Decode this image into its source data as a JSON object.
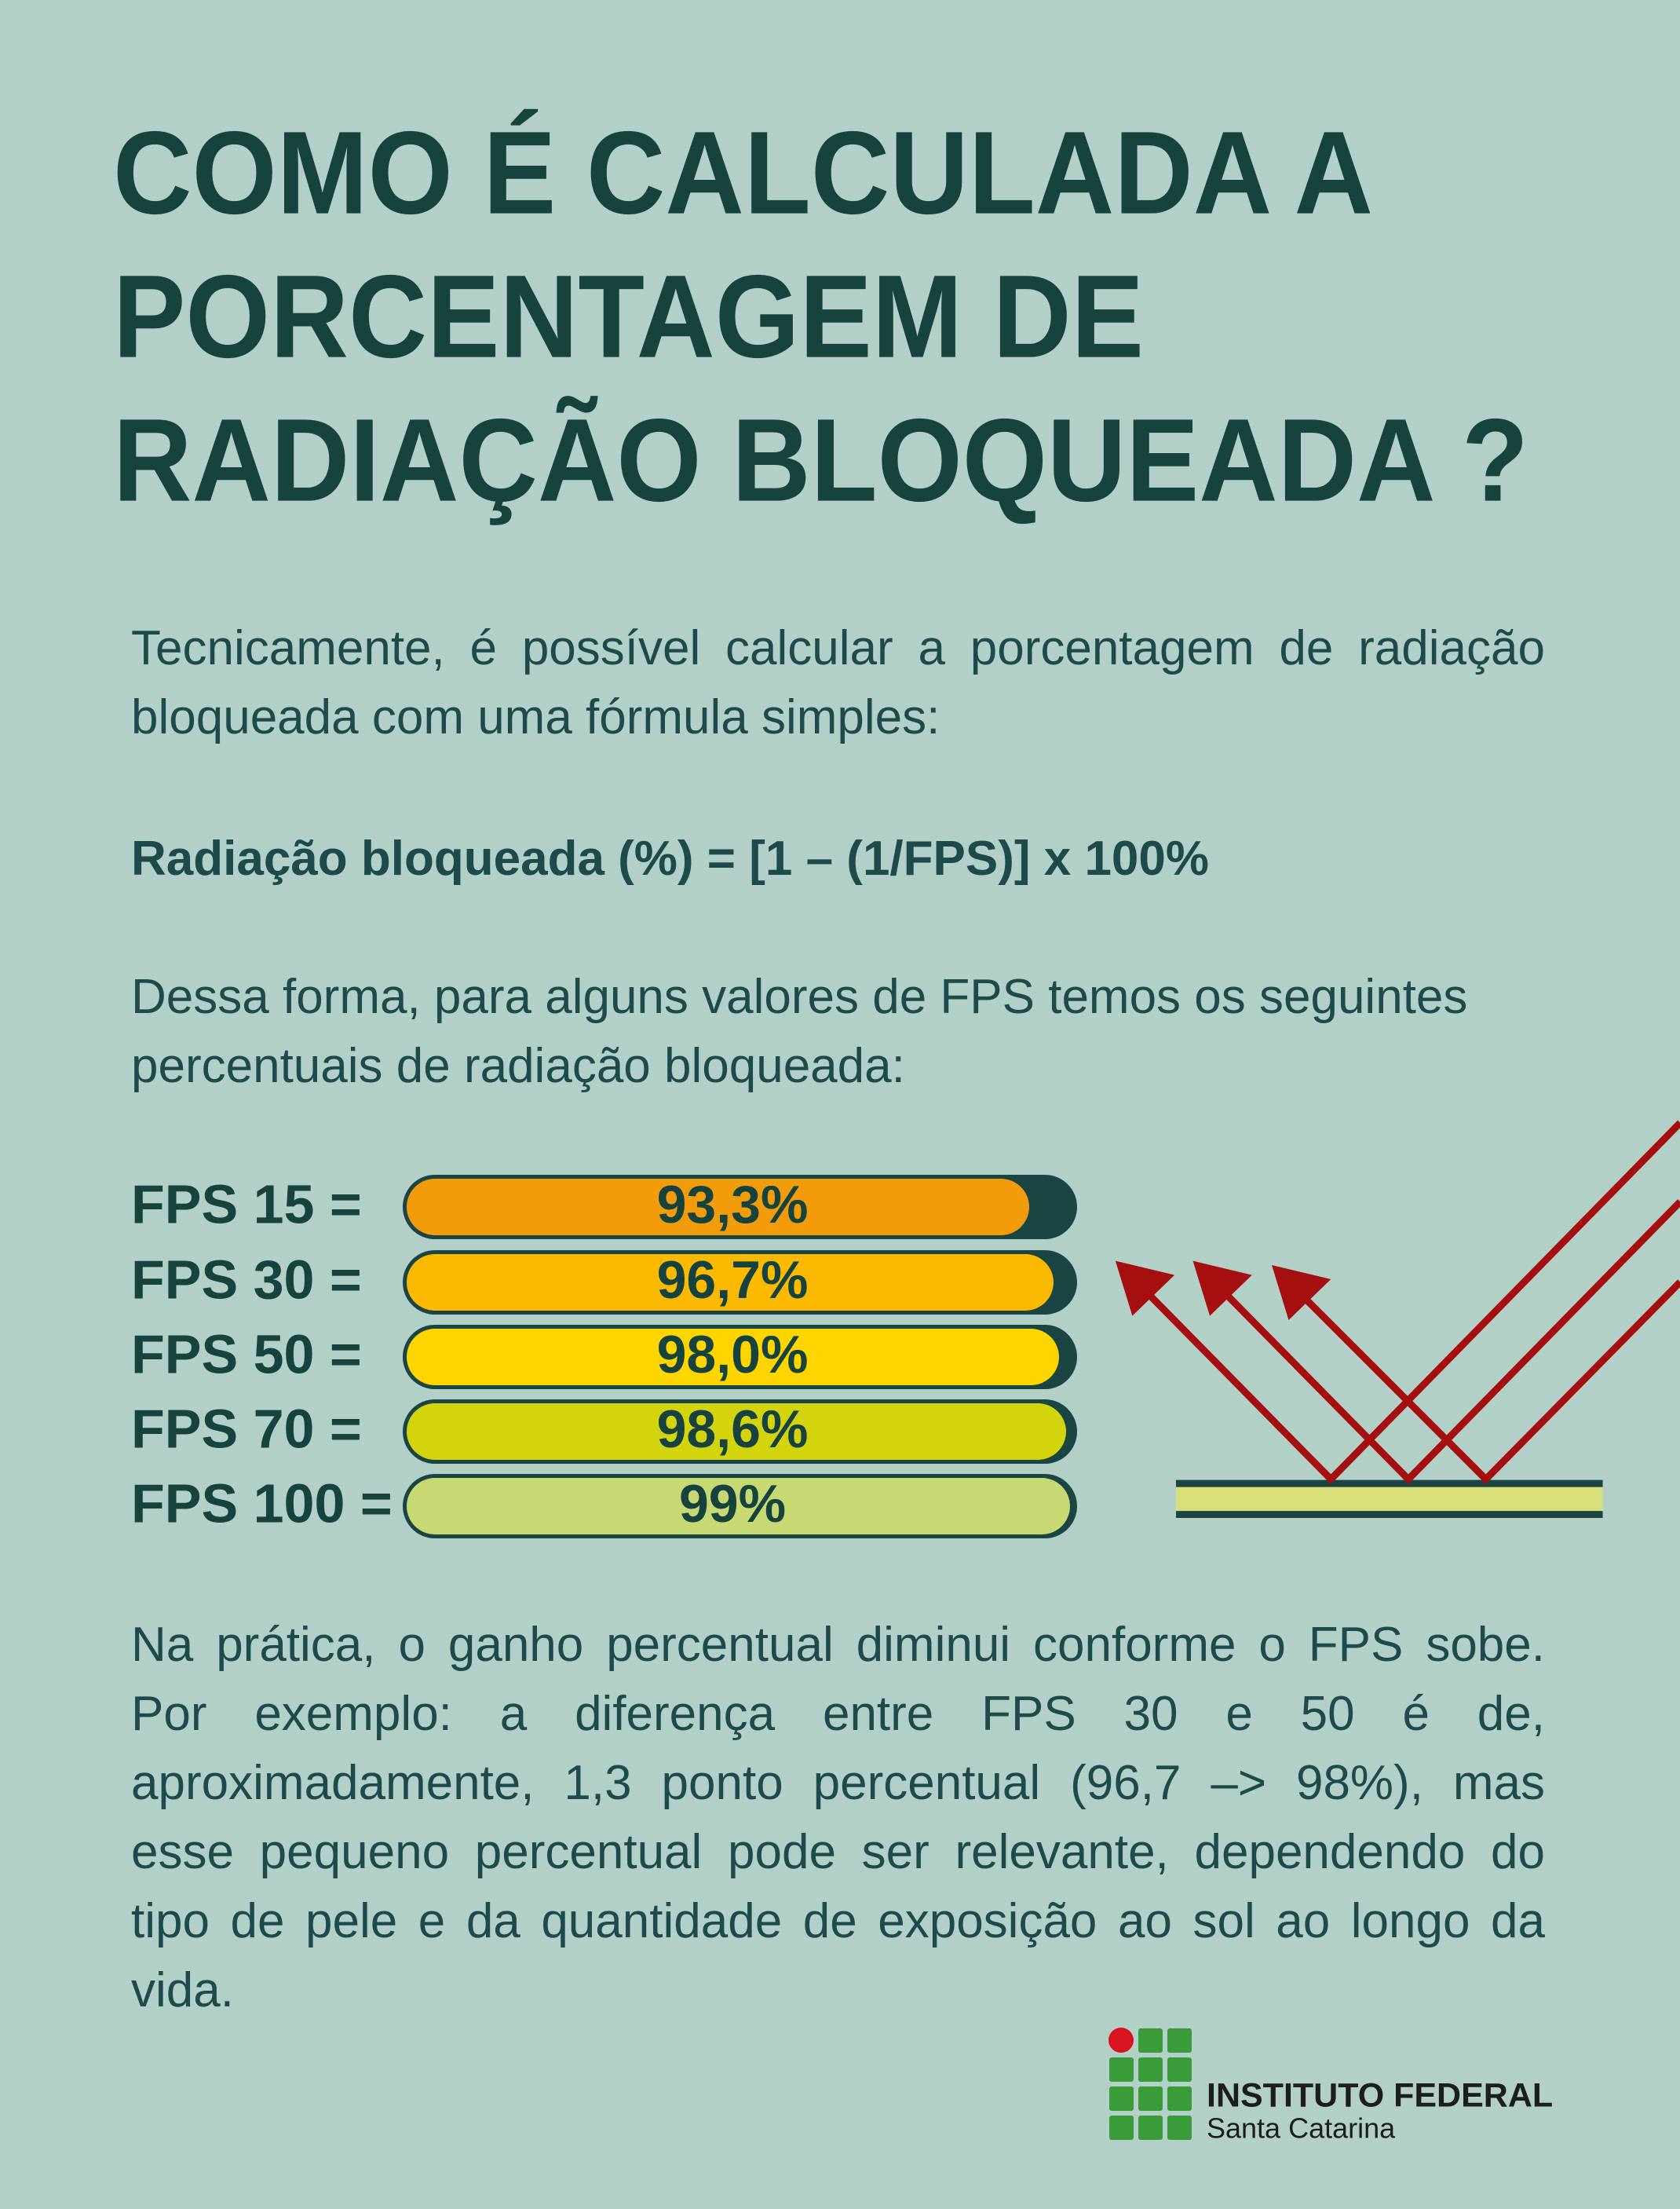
{
  "header": {
    "title_lines": [
      "COMO É CALCULADA A",
      "PORCENTAGEM DE",
      "RADIAÇÃO BLOQUEADA ?"
    ]
  },
  "intro": "Tecnicamente, é possível calcular a porcentagem de radiação bloqueada com uma fórmula simples:",
  "formula": "Radiação bloqueada (%) = [1 – (1/FPS)] x 100%",
  "lead": "Dessa forma, para alguns valores de FPS temos os seguintes percentuais de radiação bloqueada:",
  "bars": [
    {
      "label": "FPS 15 =",
      "value": "93,3%"
    },
    {
      "label": "FPS 30 =",
      "value": "96,7%"
    },
    {
      "label": "FPS 50 =",
      "value": "98,0%"
    },
    {
      "label": "FPS 70 =",
      "value": "98,6%"
    },
    {
      "label": "FPS 100 =",
      "value": "99%"
    }
  ],
  "conclusion": "Na prática, o ganho percentual diminui conforme o FPS sobe. Por exemplo: a diferença entre FPS 30 e 50 é de, aproximadamente, 1,3 ponto percentual (96,7 –> 98%), mas esse pequeno percentual pode ser relevante, dependendo do tipo de pele e da quantidade de exposição ao sol ao longo da vida.",
  "logo": {
    "name": "INSTITUTO FEDERAL",
    "campus": "Santa Catarina"
  }
}
